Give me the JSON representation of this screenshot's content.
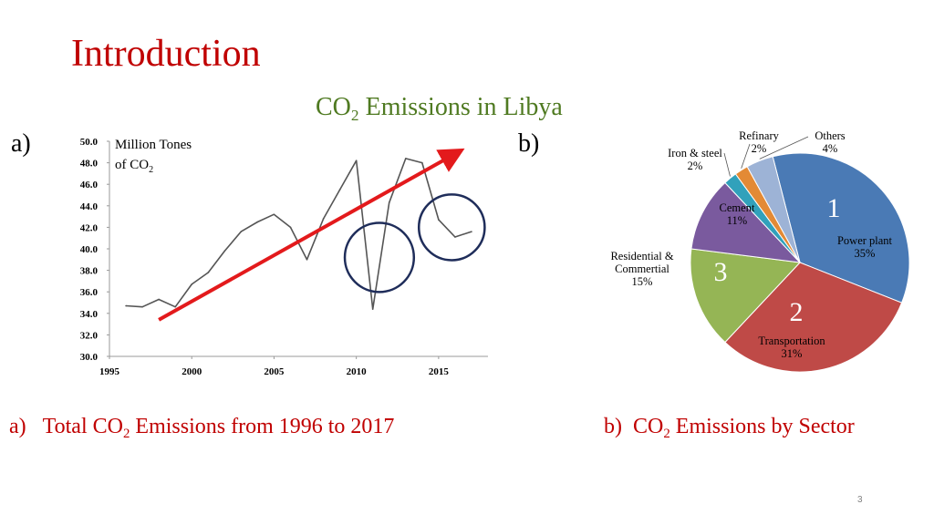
{
  "slide": {
    "title": "Introduction",
    "subtitle_prefix": "CO",
    "subtitle_sub": "2",
    "subtitle_suffix": " Emissions in Libya",
    "page_number": "3"
  },
  "panel_a": {
    "letter": "a)",
    "caption_marker": "a)",
    "caption_prefix": "Total CO",
    "caption_sub": "2",
    "caption_suffix": " Emissions from 1996 to 2017"
  },
  "panel_b": {
    "letter": "b)",
    "caption_marker": "b)",
    "caption_prefix": "CO",
    "caption_sub": "2",
    "caption_suffix": " Emissions by Sector"
  },
  "chart_data": [
    {
      "type": "line",
      "ylabel_line1": "Million Tones",
      "ylabel_line2_prefix": "of CO",
      "ylabel_line2_sub": "2",
      "xlim": [
        1995,
        2018
      ],
      "ylim": [
        30,
        50
      ],
      "x_ticks": [
        "1995",
        "2000",
        "2005",
        "2010",
        "2015"
      ],
      "y_ticks": [
        "30.0",
        "32.0",
        "34.0",
        "36.0",
        "38.0",
        "40.0",
        "42.0",
        "44.0",
        "46.0",
        "48.0",
        "50.0"
      ],
      "grid": false,
      "line_color": "#555555",
      "x": [
        1996,
        1997,
        1998,
        1999,
        2000,
        2001,
        2002,
        2003,
        2004,
        2005,
        2006,
        2007,
        2008,
        2009,
        2010,
        2011,
        2012,
        2013,
        2014,
        2015,
        2016,
        2017
      ],
      "values": [
        34.7,
        34.6,
        35.3,
        34.6,
        36.7,
        37.8,
        39.8,
        41.6,
        42.5,
        43.2,
        42.0,
        39.0,
        42.8,
        45.5,
        48.2,
        34.4,
        44.3,
        48.4,
        48.0,
        42.7,
        41.1,
        41.6
      ],
      "annotations": {
        "trend_arrow": {
          "color": "#e31a1c",
          "from": [
            1998,
            33.4
          ],
          "to": [
            2016.2,
            49.0
          ]
        },
        "circles": [
          {
            "color": "#1f2d5a",
            "center": [
              2011.4,
              39.2
            ],
            "radius_years": 2.1
          },
          {
            "color": "#1f2d5a",
            "center": [
              2015.8,
              42.0
            ],
            "radius_years": 2.0
          }
        ]
      }
    },
    {
      "type": "pie",
      "slices": [
        {
          "name": "Power plant",
          "value": 35,
          "label": "35%",
          "color": "#4a7ab5",
          "rank": "1"
        },
        {
          "name": "Transportation",
          "value": 31,
          "label": "31%",
          "color": "#bf4a47",
          "rank": "2"
        },
        {
          "name": "Residential & Commertial",
          "label_line1": "Residential &",
          "label_line2": "Commertial",
          "value": 15,
          "label": "15%",
          "color": "#95b555",
          "rank": "3"
        },
        {
          "name": "Cement",
          "value": 11,
          "label": "11%",
          "color": "#7a5a9e"
        },
        {
          "name": "Iron & steel",
          "value": 2,
          "label": "2%",
          "color": "#31a1bb"
        },
        {
          "name": "Refinary",
          "value": 2,
          "label": "2%",
          "color": "#e38a35"
        },
        {
          "name": "Others",
          "value": 4,
          "label": "4%",
          "color": "#9db3d6"
        }
      ],
      "rank_color": "#ffffff"
    }
  ]
}
